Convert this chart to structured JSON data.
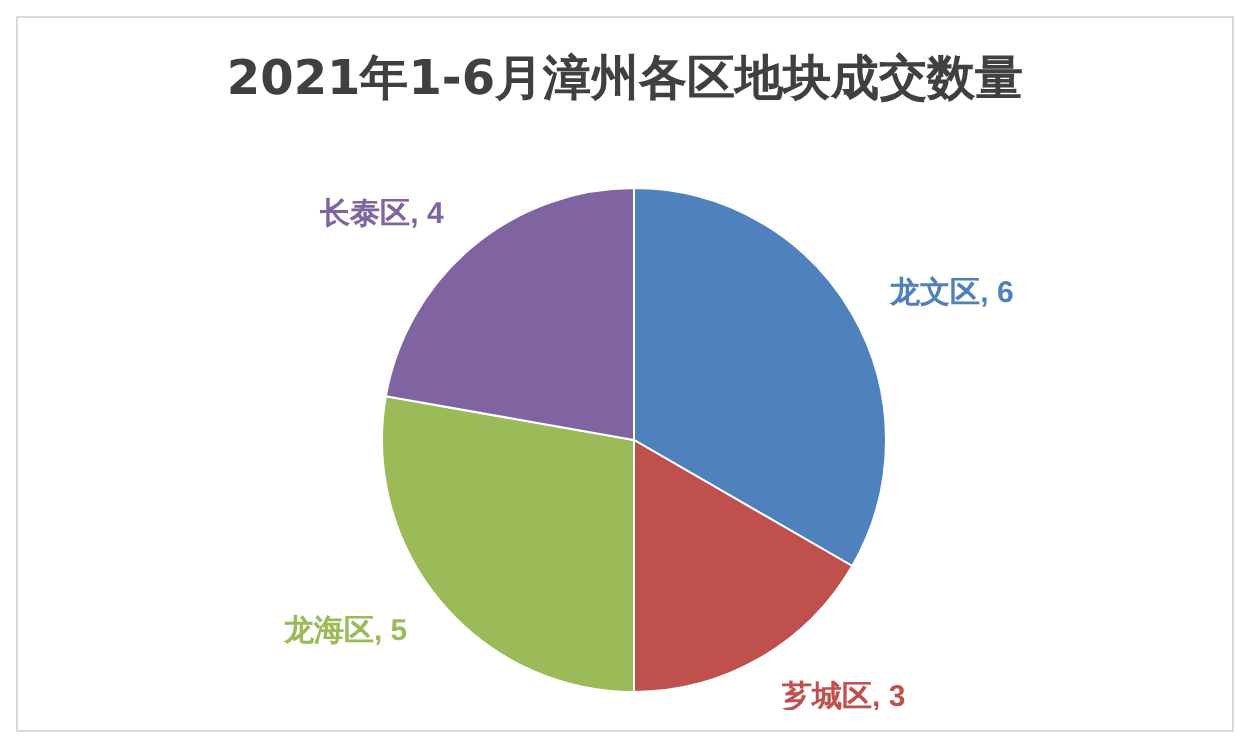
{
  "chart_data": {
    "type": "pie",
    "title": "2021年1-6月漳州各区地块成交数量",
    "categories": [
      "龙文区",
      "芗城区",
      "龙海区",
      "长泰区"
    ],
    "values": [
      6,
      3,
      5,
      4
    ],
    "colors": [
      "#4f81bd",
      "#c0504d",
      "#9bbb59",
      "#8064a2"
    ],
    "value_labels": [
      ", 6",
      ", 3",
      ", 5",
      ", 4"
    ],
    "legend": false
  }
}
